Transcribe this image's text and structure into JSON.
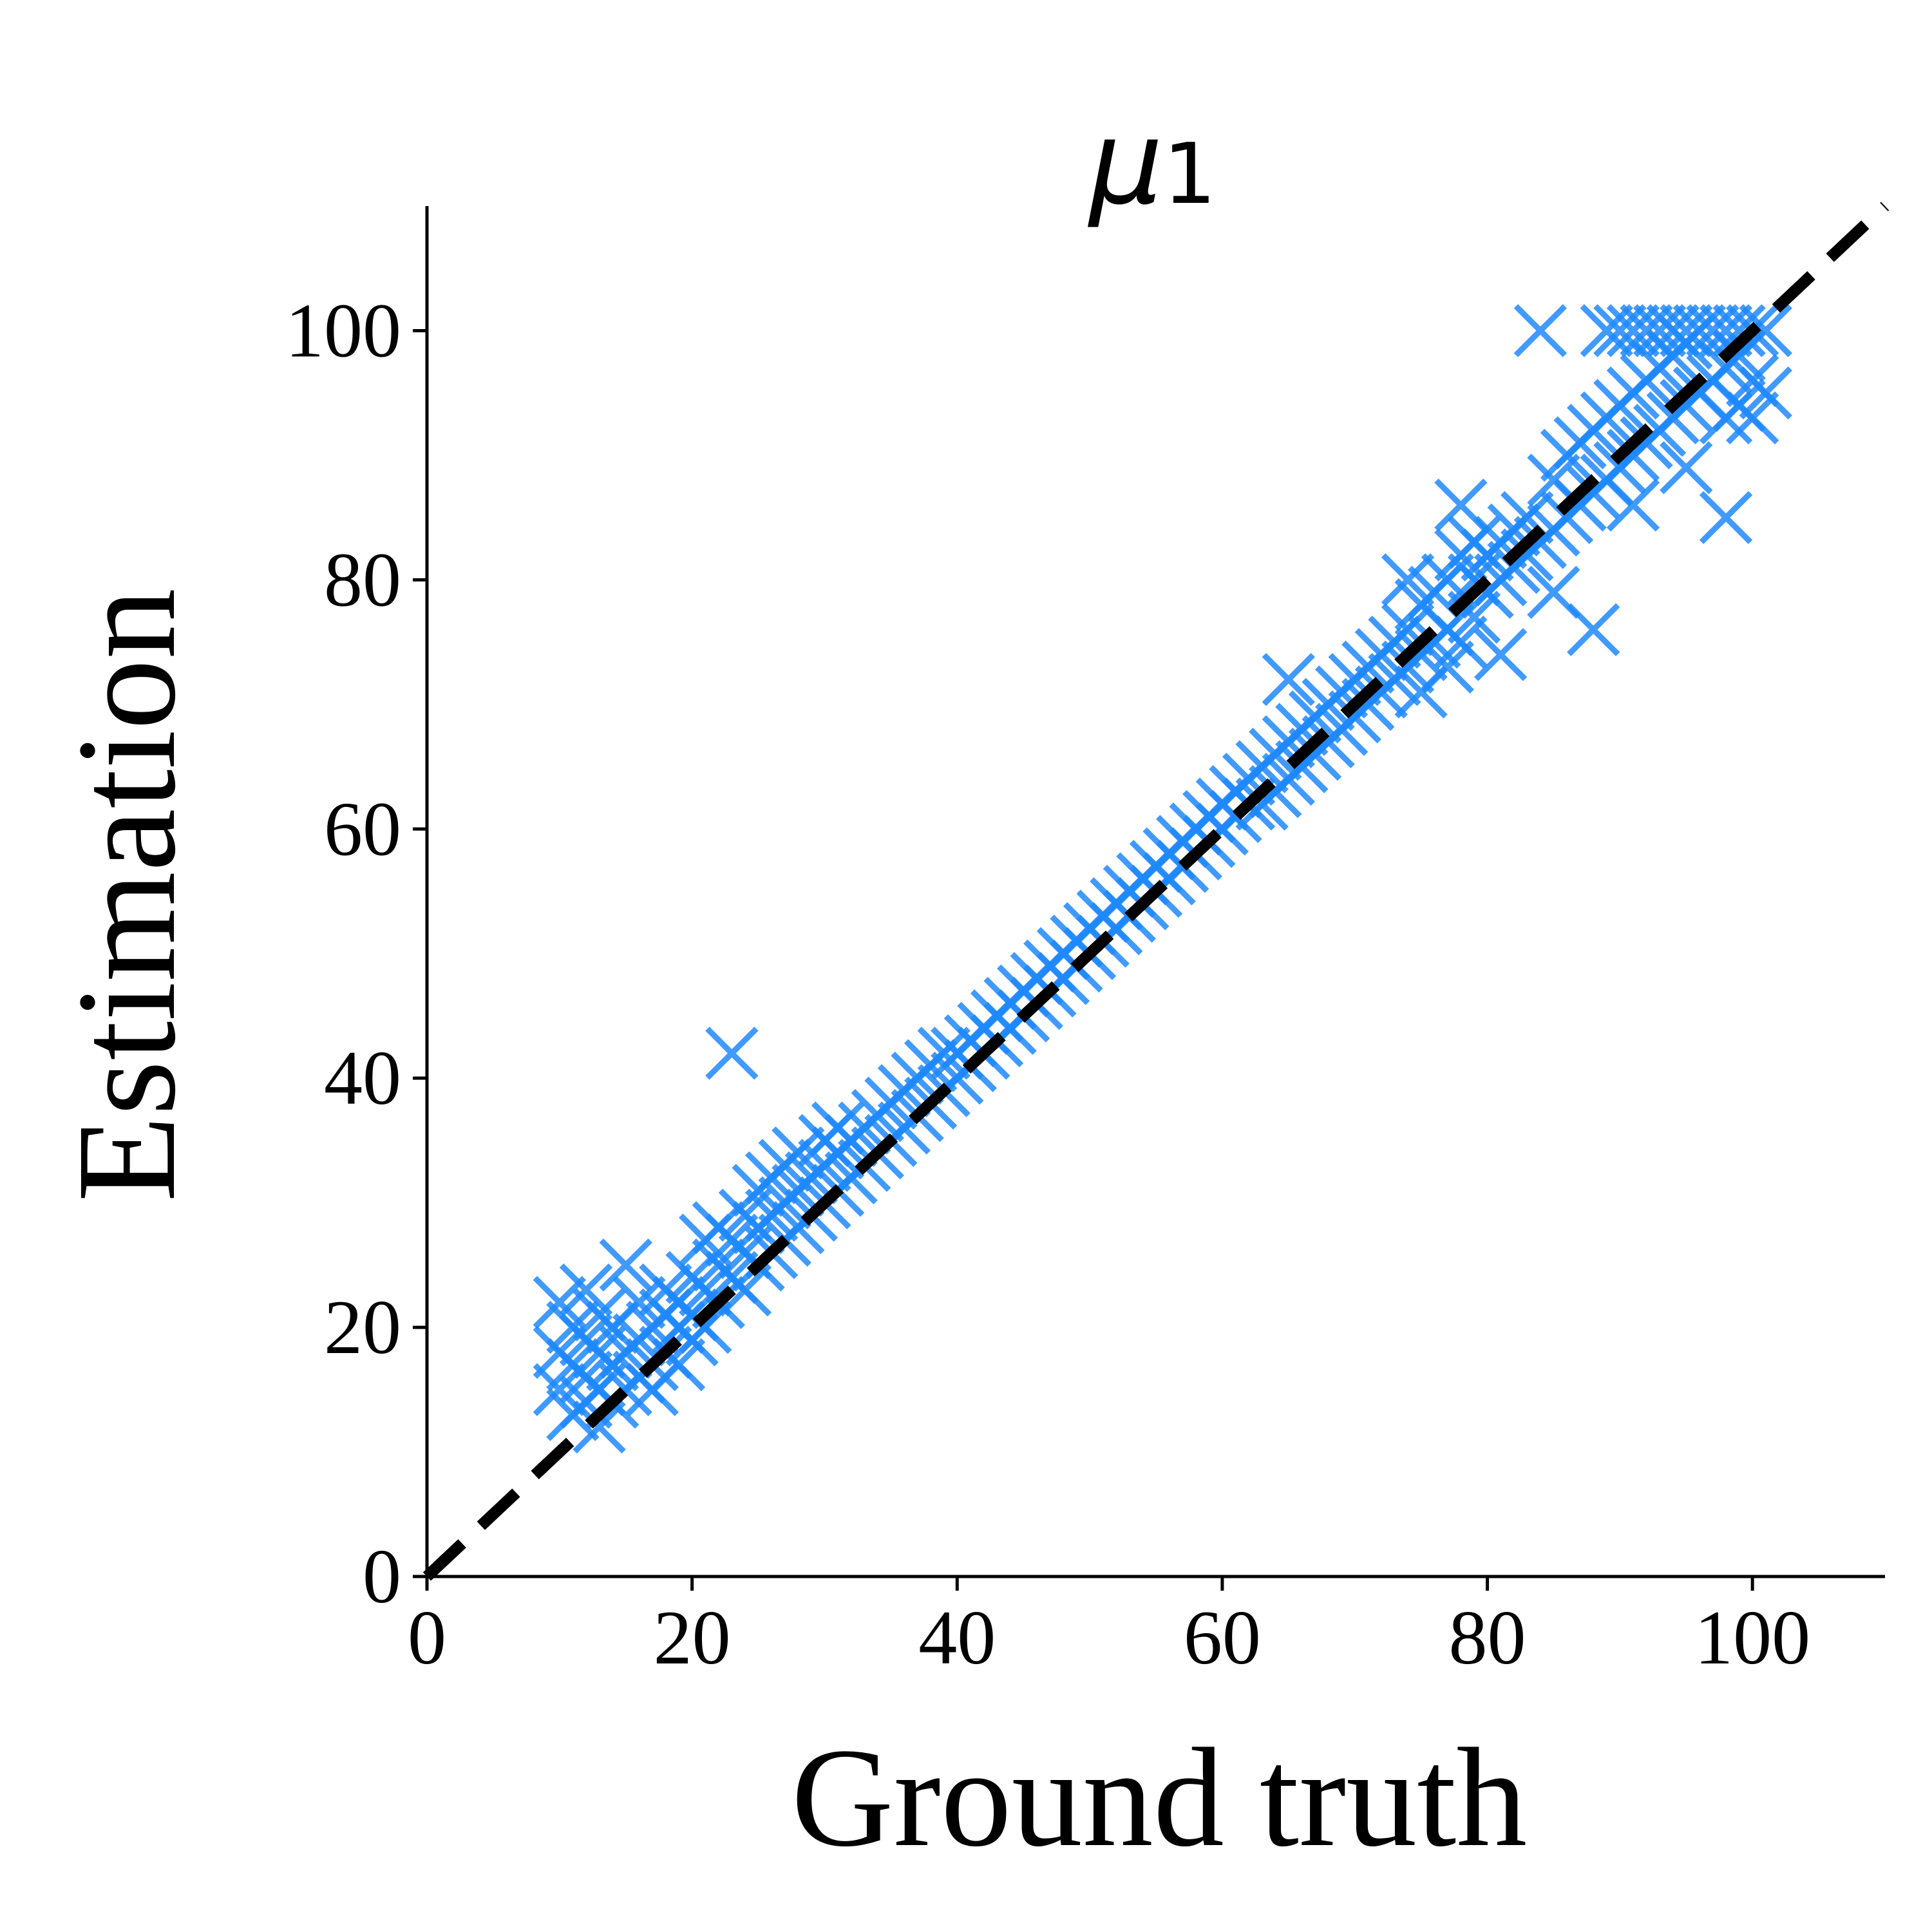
{
  "chart_data": {
    "type": "scatter",
    "title": "μ",
    "title_subscript": "1",
    "xlabel": "Ground truth",
    "ylabel": "Estimation",
    "xlim": [
      0,
      110
    ],
    "ylim": [
      0,
      110
    ],
    "xticks": [
      "0",
      "20",
      "40",
      "60",
      "80",
      "100"
    ],
    "yticks": [
      "0",
      "20",
      "40",
      "60",
      "80",
      "100"
    ],
    "grid": false,
    "marker": "x",
    "marker_color": "#1e88ff",
    "reference_line": {
      "style": "dashed",
      "color": "#000000",
      "from": [
        0,
        0
      ],
      "to": [
        110,
        110
      ]
    },
    "points": [
      [
        10,
        15
      ],
      [
        10,
        18
      ],
      [
        10,
        22
      ],
      [
        11,
        13
      ],
      [
        11,
        17
      ],
      [
        11,
        20
      ],
      [
        12,
        14
      ],
      [
        12,
        16
      ],
      [
        12,
        19
      ],
      [
        12,
        23
      ],
      [
        13,
        12
      ],
      [
        13,
        15
      ],
      [
        13,
        18
      ],
      [
        13,
        21
      ],
      [
        14,
        14
      ],
      [
        14,
        17
      ],
      [
        14,
        20
      ],
      [
        15,
        15
      ],
      [
        15,
        18
      ],
      [
        15,
        25
      ],
      [
        16,
        16
      ],
      [
        16,
        19
      ],
      [
        16,
        22
      ],
      [
        17,
        17
      ],
      [
        17,
        20
      ],
      [
        17,
        15
      ],
      [
        18,
        18
      ],
      [
        18,
        21
      ],
      [
        18,
        23
      ],
      [
        19,
        17
      ],
      [
        19,
        20
      ],
      [
        19,
        22
      ],
      [
        20,
        19
      ],
      [
        20,
        21
      ],
      [
        20,
        24
      ],
      [
        21,
        20
      ],
      [
        21,
        23
      ],
      [
        21,
        27
      ],
      [
        22,
        22
      ],
      [
        22,
        25
      ],
      [
        22,
        28
      ],
      [
        23,
        42
      ],
      [
        23,
        24
      ],
      [
        23,
        27
      ],
      [
        24,
        23
      ],
      [
        24,
        26
      ],
      [
        24,
        29
      ],
      [
        25,
        25
      ],
      [
        25,
        28
      ],
      [
        25,
        31
      ],
      [
        26,
        26
      ],
      [
        26,
        29
      ],
      [
        26,
        32
      ],
      [
        27,
        27
      ],
      [
        27,
        30
      ],
      [
        27,
        33
      ],
      [
        28,
        28
      ],
      [
        28,
        31
      ],
      [
        28,
        34
      ],
      [
        29,
        29
      ],
      [
        29,
        32
      ],
      [
        30,
        30
      ],
      [
        30,
        33
      ],
      [
        30,
        35
      ],
      [
        31,
        31
      ],
      [
        31,
        34
      ],
      [
        31,
        36
      ],
      [
        32,
        32
      ],
      [
        32,
        35
      ],
      [
        33,
        33
      ],
      [
        33,
        36
      ],
      [
        34,
        34
      ],
      [
        34,
        37
      ],
      [
        35,
        35
      ],
      [
        35,
        38
      ],
      [
        36,
        36
      ],
      [
        36,
        39
      ],
      [
        37,
        37
      ],
      [
        37,
        40
      ],
      [
        38,
        38
      ],
      [
        38,
        41
      ],
      [
        39,
        39
      ],
      [
        39,
        42
      ],
      [
        40,
        40
      ],
      [
        40,
        42
      ],
      [
        41,
        41
      ],
      [
        41,
        43
      ],
      [
        42,
        42
      ],
      [
        42,
        44
      ],
      [
        43,
        43
      ],
      [
        43,
        45
      ],
      [
        44,
        44
      ],
      [
        44,
        46
      ],
      [
        45,
        45
      ],
      [
        45,
        47
      ],
      [
        46,
        46
      ],
      [
        46,
        48
      ],
      [
        47,
        47
      ],
      [
        47,
        49
      ],
      [
        48,
        48
      ],
      [
        48,
        50
      ],
      [
        49,
        49
      ],
      [
        49,
        51
      ],
      [
        50,
        50
      ],
      [
        50,
        52
      ],
      [
        51,
        51
      ],
      [
        51,
        53
      ],
      [
        52,
        52
      ],
      [
        52,
        54
      ],
      [
        53,
        53
      ],
      [
        53,
        55
      ],
      [
        54,
        54
      ],
      [
        54,
        56
      ],
      [
        55,
        55
      ],
      [
        55,
        57
      ],
      [
        56,
        56
      ],
      [
        56,
        58
      ],
      [
        57,
        57
      ],
      [
        57,
        59
      ],
      [
        58,
        58
      ],
      [
        58,
        60
      ],
      [
        59,
        59
      ],
      [
        59,
        61
      ],
      [
        60,
        60
      ],
      [
        60,
        62
      ],
      [
        61,
        61
      ],
      [
        61,
        63
      ],
      [
        62,
        62
      ],
      [
        62,
        64
      ],
      [
        63,
        62
      ],
      [
        63,
        65
      ],
      [
        64,
        63
      ],
      [
        64,
        66
      ],
      [
        65,
        64
      ],
      [
        65,
        67
      ],
      [
        65,
        72
      ],
      [
        66,
        65
      ],
      [
        66,
        68
      ],
      [
        67,
        66
      ],
      [
        67,
        69
      ],
      [
        68,
        67
      ],
      [
        68,
        70
      ],
      [
        69,
        68
      ],
      [
        69,
        71
      ],
      [
        70,
        69
      ],
      [
        70,
        72
      ],
      [
        71,
        70
      ],
      [
        71,
        73
      ],
      [
        72,
        71
      ],
      [
        72,
        74
      ],
      [
        73,
        72
      ],
      [
        73,
        75
      ],
      [
        74,
        73
      ],
      [
        74,
        76
      ],
      [
        74,
        80
      ],
      [
        75,
        71
      ],
      [
        75,
        74
      ],
      [
        75,
        78
      ],
      [
        76,
        75
      ],
      [
        76,
        79
      ],
      [
        77,
        73
      ],
      [
        77,
        76
      ],
      [
        77,
        80
      ],
      [
        78,
        75
      ],
      [
        78,
        82
      ],
      [
        78,
        86
      ],
      [
        79,
        77
      ],
      [
        79,
        80
      ],
      [
        79,
        83
      ],
      [
        80,
        79
      ],
      [
        80,
        82
      ],
      [
        81,
        80
      ],
      [
        81,
        83
      ],
      [
        81,
        74
      ],
      [
        82,
        81
      ],
      [
        82,
        84
      ],
      [
        83,
        82
      ],
      [
        83,
        85
      ],
      [
        84,
        100
      ],
      [
        84,
        83
      ],
      [
        85,
        84
      ],
      [
        85,
        88
      ],
      [
        85,
        79
      ],
      [
        86,
        85
      ],
      [
        86,
        90
      ],
      [
        87,
        86
      ],
      [
        87,
        91
      ],
      [
        88,
        76
      ],
      [
        88,
        87
      ],
      [
        88,
        92
      ],
      [
        89,
        88
      ],
      [
        89,
        93
      ],
      [
        89,
        100
      ],
      [
        90,
        89
      ],
      [
        90,
        94
      ],
      [
        90,
        100
      ],
      [
        91,
        86
      ],
      [
        91,
        90
      ],
      [
        91,
        95
      ],
      [
        91,
        100
      ],
      [
        92,
        91
      ],
      [
        92,
        96
      ],
      [
        92,
        100
      ],
      [
        93,
        92
      ],
      [
        93,
        97
      ],
      [
        93,
        100
      ],
      [
        94,
        93
      ],
      [
        94,
        98
      ],
      [
        94,
        100
      ],
      [
        95,
        89
      ],
      [
        95,
        94
      ],
      [
        95,
        99
      ],
      [
        95,
        100
      ],
      [
        96,
        95
      ],
      [
        96,
        100
      ],
      [
        97,
        96
      ],
      [
        97,
        100
      ],
      [
        98,
        85
      ],
      [
        98,
        93
      ],
      [
        98,
        97
      ],
      [
        98,
        100
      ],
      [
        99,
        94
      ],
      [
        99,
        98
      ],
      [
        99,
        100
      ],
      [
        100,
        93
      ],
      [
        100,
        96
      ],
      [
        100,
        100
      ],
      [
        101,
        95
      ],
      [
        101,
        100
      ]
    ]
  }
}
